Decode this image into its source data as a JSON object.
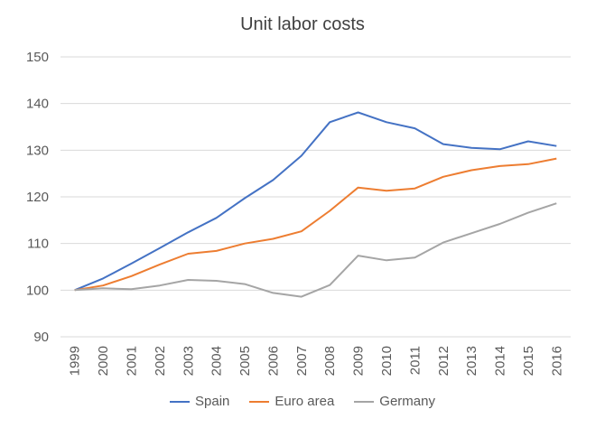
{
  "chart_data": {
    "type": "line",
    "title": "Unit labor costs",
    "xlabel": "",
    "ylabel": "",
    "ylim": [
      90,
      150
    ],
    "yticks": [
      90,
      100,
      110,
      120,
      130,
      140,
      150
    ],
    "x": [
      "1999",
      "2000",
      "2001",
      "2002",
      "2003",
      "2004",
      "2005",
      "2006",
      "2007",
      "2008",
      "2009",
      "2010",
      "2011",
      "2012",
      "2013",
      "2014",
      "2015",
      "2016"
    ],
    "grid": true,
    "legend_position": "bottom",
    "series": [
      {
        "name": "Spain",
        "color": "#4472C4",
        "values": [
          100,
          102.5,
          105.7,
          109.0,
          112.4,
          115.5,
          119.7,
          123.6,
          128.8,
          136.0,
          138.1,
          136.0,
          134.7,
          131.3,
          130.5,
          130.2,
          131.9,
          130.9
        ]
      },
      {
        "name": "Euro area",
        "color": "#ED7D31",
        "values": [
          100,
          101.0,
          103.0,
          105.5,
          107.8,
          108.4,
          110.0,
          111.0,
          112.6,
          117.0,
          122.0,
          121.3,
          121.8,
          124.3,
          125.7,
          126.6,
          127.0,
          128.2
        ]
      },
      {
        "name": "Germany",
        "color": "#A5A5A5",
        "values": [
          100,
          100.4,
          100.2,
          101.0,
          102.2,
          102.0,
          101.3,
          99.4,
          98.6,
          101.1,
          107.4,
          106.4,
          107.0,
          110.2,
          112.2,
          114.2,
          116.6,
          118.6
        ]
      }
    ]
  }
}
